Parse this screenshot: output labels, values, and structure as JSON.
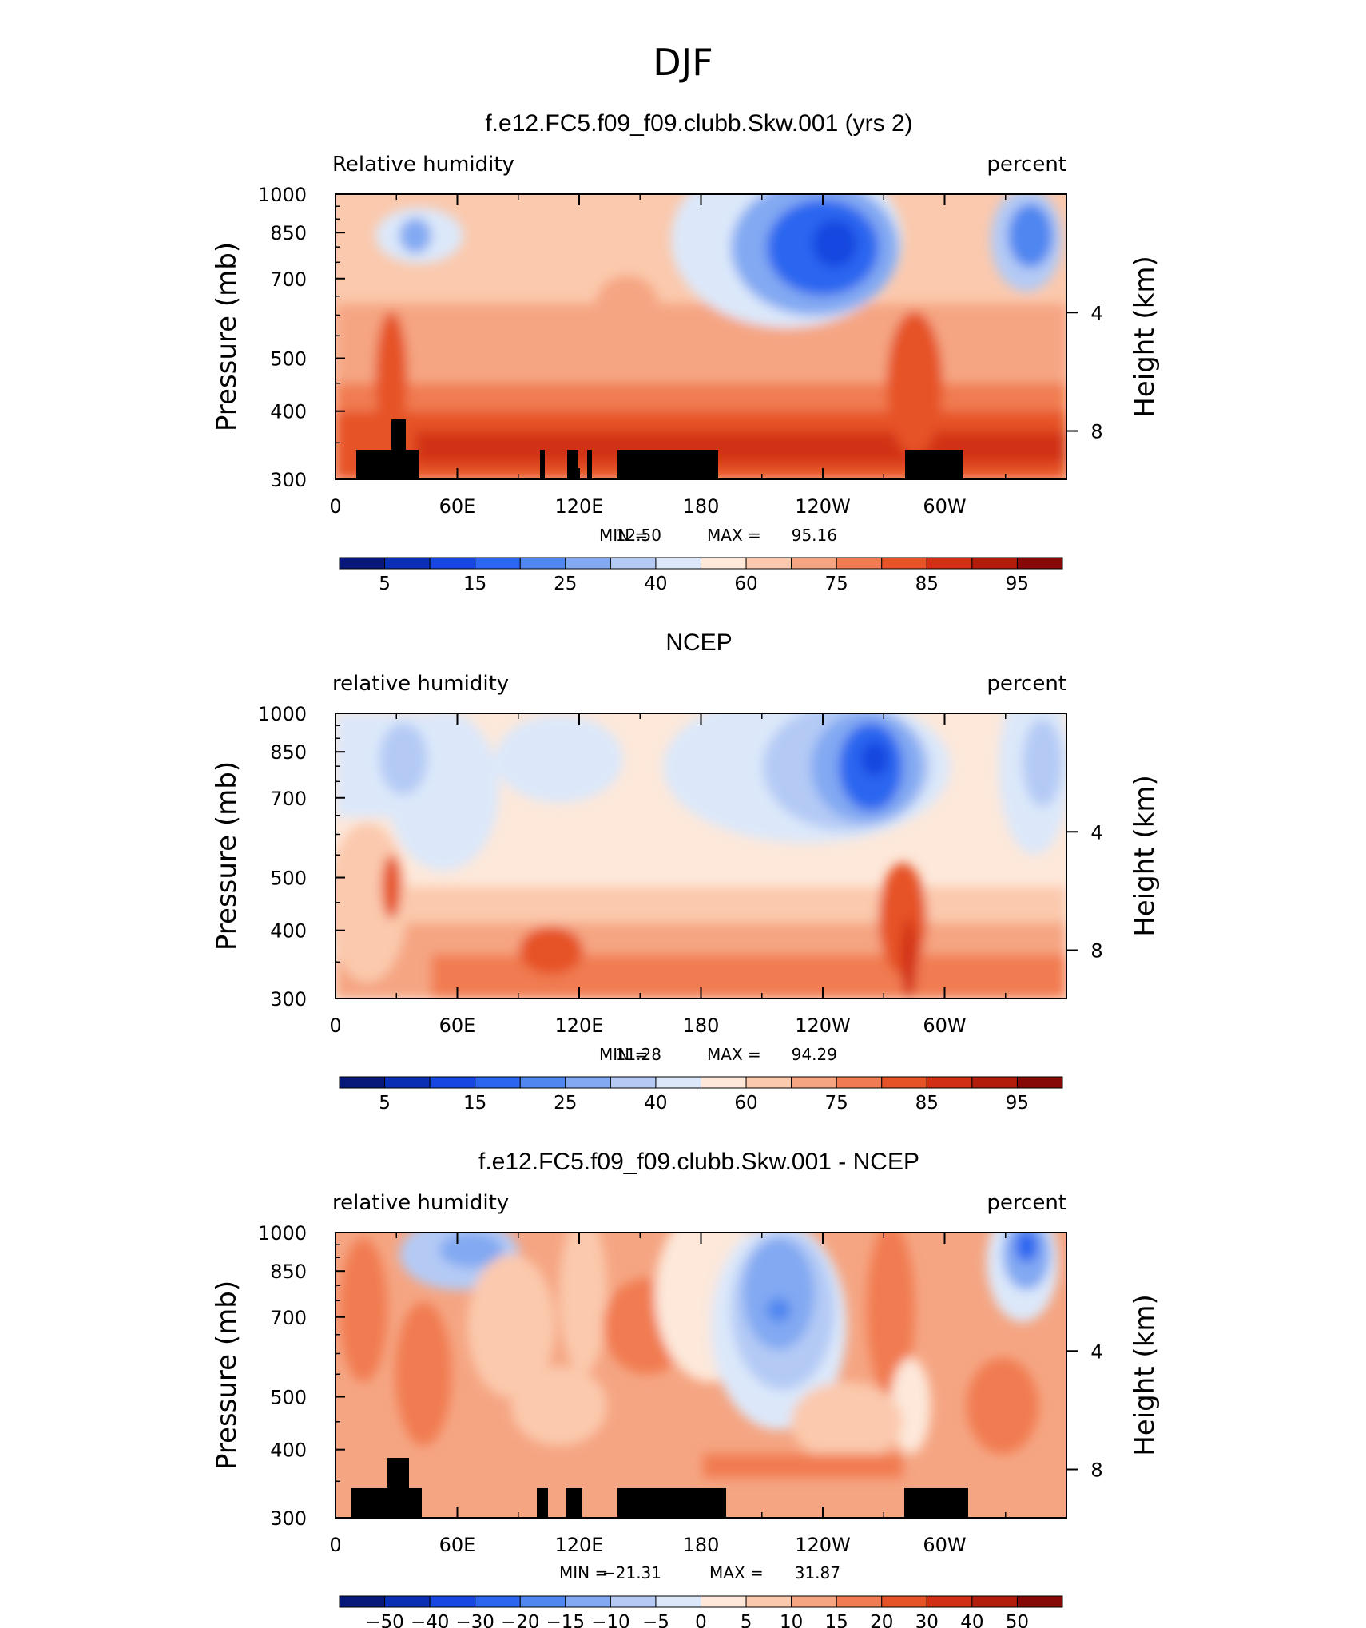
{
  "page": {
    "title": "DJF"
  },
  "colors": {
    "frame": "#000000",
    "topography": "#000000",
    "background": "#ffffff"
  },
  "chart_data": [
    {
      "type": "heatmap",
      "panel_title": "f.e12.FC5.f09_f09.clubb.Skw.001 (yrs 2)",
      "variable_label": "Relative humidity",
      "units_label": "percent",
      "ylabel": "Pressure (mb)",
      "y2label": "Height (km)",
      "yticks": [
        1000,
        850,
        700,
        500,
        400,
        300
      ],
      "y2ticks": [
        4,
        8
      ],
      "xticks": [
        "0",
        "60E",
        "120E",
        "180",
        "120W",
        "60W"
      ],
      "xlim": [
        0,
        360
      ],
      "ylim": [
        1000,
        300
      ],
      "min_label": "MIN =",
      "min_value": "12.50",
      "max_label": "MAX =",
      "max_value": "95.16",
      "colorbar_labels": [
        "5",
        "15",
        "25",
        "40",
        "60",
        "75",
        "85",
        "95"
      ],
      "colorbar_colors": [
        "#08177a",
        "#0a2fb5",
        "#1747e0",
        "#2b66f0",
        "#4f86f0",
        "#82a9f2",
        "#b4caf5",
        "#dce8fa",
        "#fde8da",
        "#fbc9ad",
        "#f5a582",
        "#f17c51",
        "#e65327",
        "#d13014",
        "#b11c0b",
        "#860807"
      ]
    },
    {
      "type": "heatmap",
      "panel_title": "NCEP",
      "variable_label": "relative humidity",
      "units_label": "percent",
      "ylabel": "Pressure (mb)",
      "y2label": "Height (km)",
      "yticks": [
        1000,
        850,
        700,
        500,
        400,
        300
      ],
      "y2ticks": [
        4,
        8
      ],
      "xticks": [
        "0",
        "60E",
        "120E",
        "180",
        "120W",
        "60W"
      ],
      "xlim": [
        0,
        360
      ],
      "ylim": [
        1000,
        300
      ],
      "min_label": "MIN =",
      "min_value": "11.28",
      "max_label": "MAX =",
      "max_value": "94.29",
      "colorbar_labels": [
        "5",
        "15",
        "25",
        "40",
        "60",
        "75",
        "85",
        "95"
      ],
      "colorbar_colors": [
        "#08177a",
        "#0a2fb5",
        "#1747e0",
        "#2b66f0",
        "#4f86f0",
        "#82a9f2",
        "#b4caf5",
        "#dce8fa",
        "#fde8da",
        "#fbc9ad",
        "#f5a582",
        "#f17c51",
        "#e65327",
        "#d13014",
        "#b11c0b",
        "#860807"
      ]
    },
    {
      "type": "heatmap",
      "panel_title": "f.e12.FC5.f09_f09.clubb.Skw.001 - NCEP",
      "variable_label": "relative humidity",
      "units_label": "percent",
      "ylabel": "Pressure (mb)",
      "y2label": "Height (km)",
      "yticks": [
        1000,
        850,
        700,
        500,
        400,
        300
      ],
      "y2ticks": [
        4,
        8
      ],
      "xticks": [
        "0",
        "60E",
        "120E",
        "180",
        "120W",
        "60W"
      ],
      "xlim": [
        0,
        360
      ],
      "ylim": [
        1000,
        300
      ],
      "min_label": "MIN =",
      "min_value": "−21.31",
      "max_label": "MAX =",
      "max_value": "31.87",
      "colorbar_labels": [
        "−50",
        "−40",
        "−30",
        "−20",
        "−15",
        "−10",
        "−5",
        "0",
        "5",
        "10",
        "15",
        "20",
        "30",
        "40",
        "50"
      ],
      "colorbar_colors": [
        "#08177a",
        "#0a2fb5",
        "#1747e0",
        "#2b66f0",
        "#4f86f0",
        "#82a9f2",
        "#b4caf5",
        "#dce8fa",
        "#fde8da",
        "#fbc9ad",
        "#f5a582",
        "#f17c51",
        "#e65327",
        "#d13014",
        "#b11c0b",
        "#860807"
      ]
    }
  ]
}
